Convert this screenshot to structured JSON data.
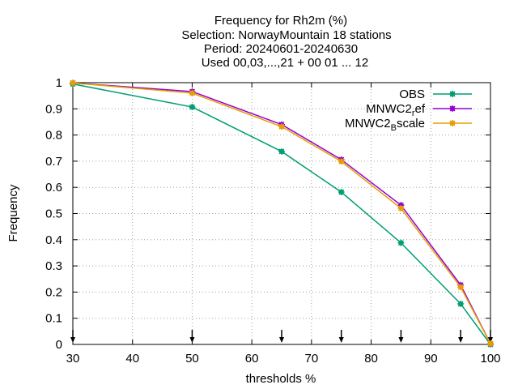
{
  "chart_data": {
    "type": "line",
    "title_lines": [
      "Frequency  for Rh2m (%)",
      "Selection: NorwayMountain     18 stations",
      "Period: 20240601-20240630",
      "Used 00,03,...,21 + 00 01 ... 12"
    ],
    "xlabel": "thresholds %",
    "ylabel": "Frequency",
    "xlim": [
      30,
      100
    ],
    "ylim": [
      0,
      1
    ],
    "x_ticks": [
      "30",
      "40",
      "50",
      "60",
      "70",
      "80",
      "90",
      "100"
    ],
    "y_ticks": [
      "0",
      "0.1",
      "0.2",
      "0.3",
      "0.4",
      "0.5",
      "0.6",
      "0.7",
      "0.8",
      "0.9",
      "1"
    ],
    "grid": true,
    "legend_position": "top-right",
    "threshold_markers": [
      30,
      50,
      65,
      75,
      85,
      95,
      100
    ],
    "series": [
      {
        "name": "OBS",
        "color": "#009e73",
        "x": [
          30,
          50,
          65,
          75,
          85,
          95,
          100
        ],
        "y": [
          0.995,
          0.907,
          0.737,
          0.582,
          0.388,
          0.155,
          0.0
        ]
      },
      {
        "name_main": "MNWC2",
        "name_sub": "r",
        "name_tail": "ef",
        "color": "#9400d3",
        "x": [
          30,
          50,
          65,
          75,
          85,
          95,
          100
        ],
        "y": [
          0.999,
          0.966,
          0.84,
          0.706,
          0.532,
          0.227,
          0.003
        ]
      },
      {
        "name_main": "MNWC2",
        "name_sub": "B",
        "name_tail": "scale",
        "color": "#e69f00",
        "x": [
          30,
          50,
          65,
          75,
          85,
          95,
          100
        ],
        "y": [
          0.999,
          0.96,
          0.832,
          0.699,
          0.52,
          0.219,
          0.003
        ]
      }
    ]
  }
}
